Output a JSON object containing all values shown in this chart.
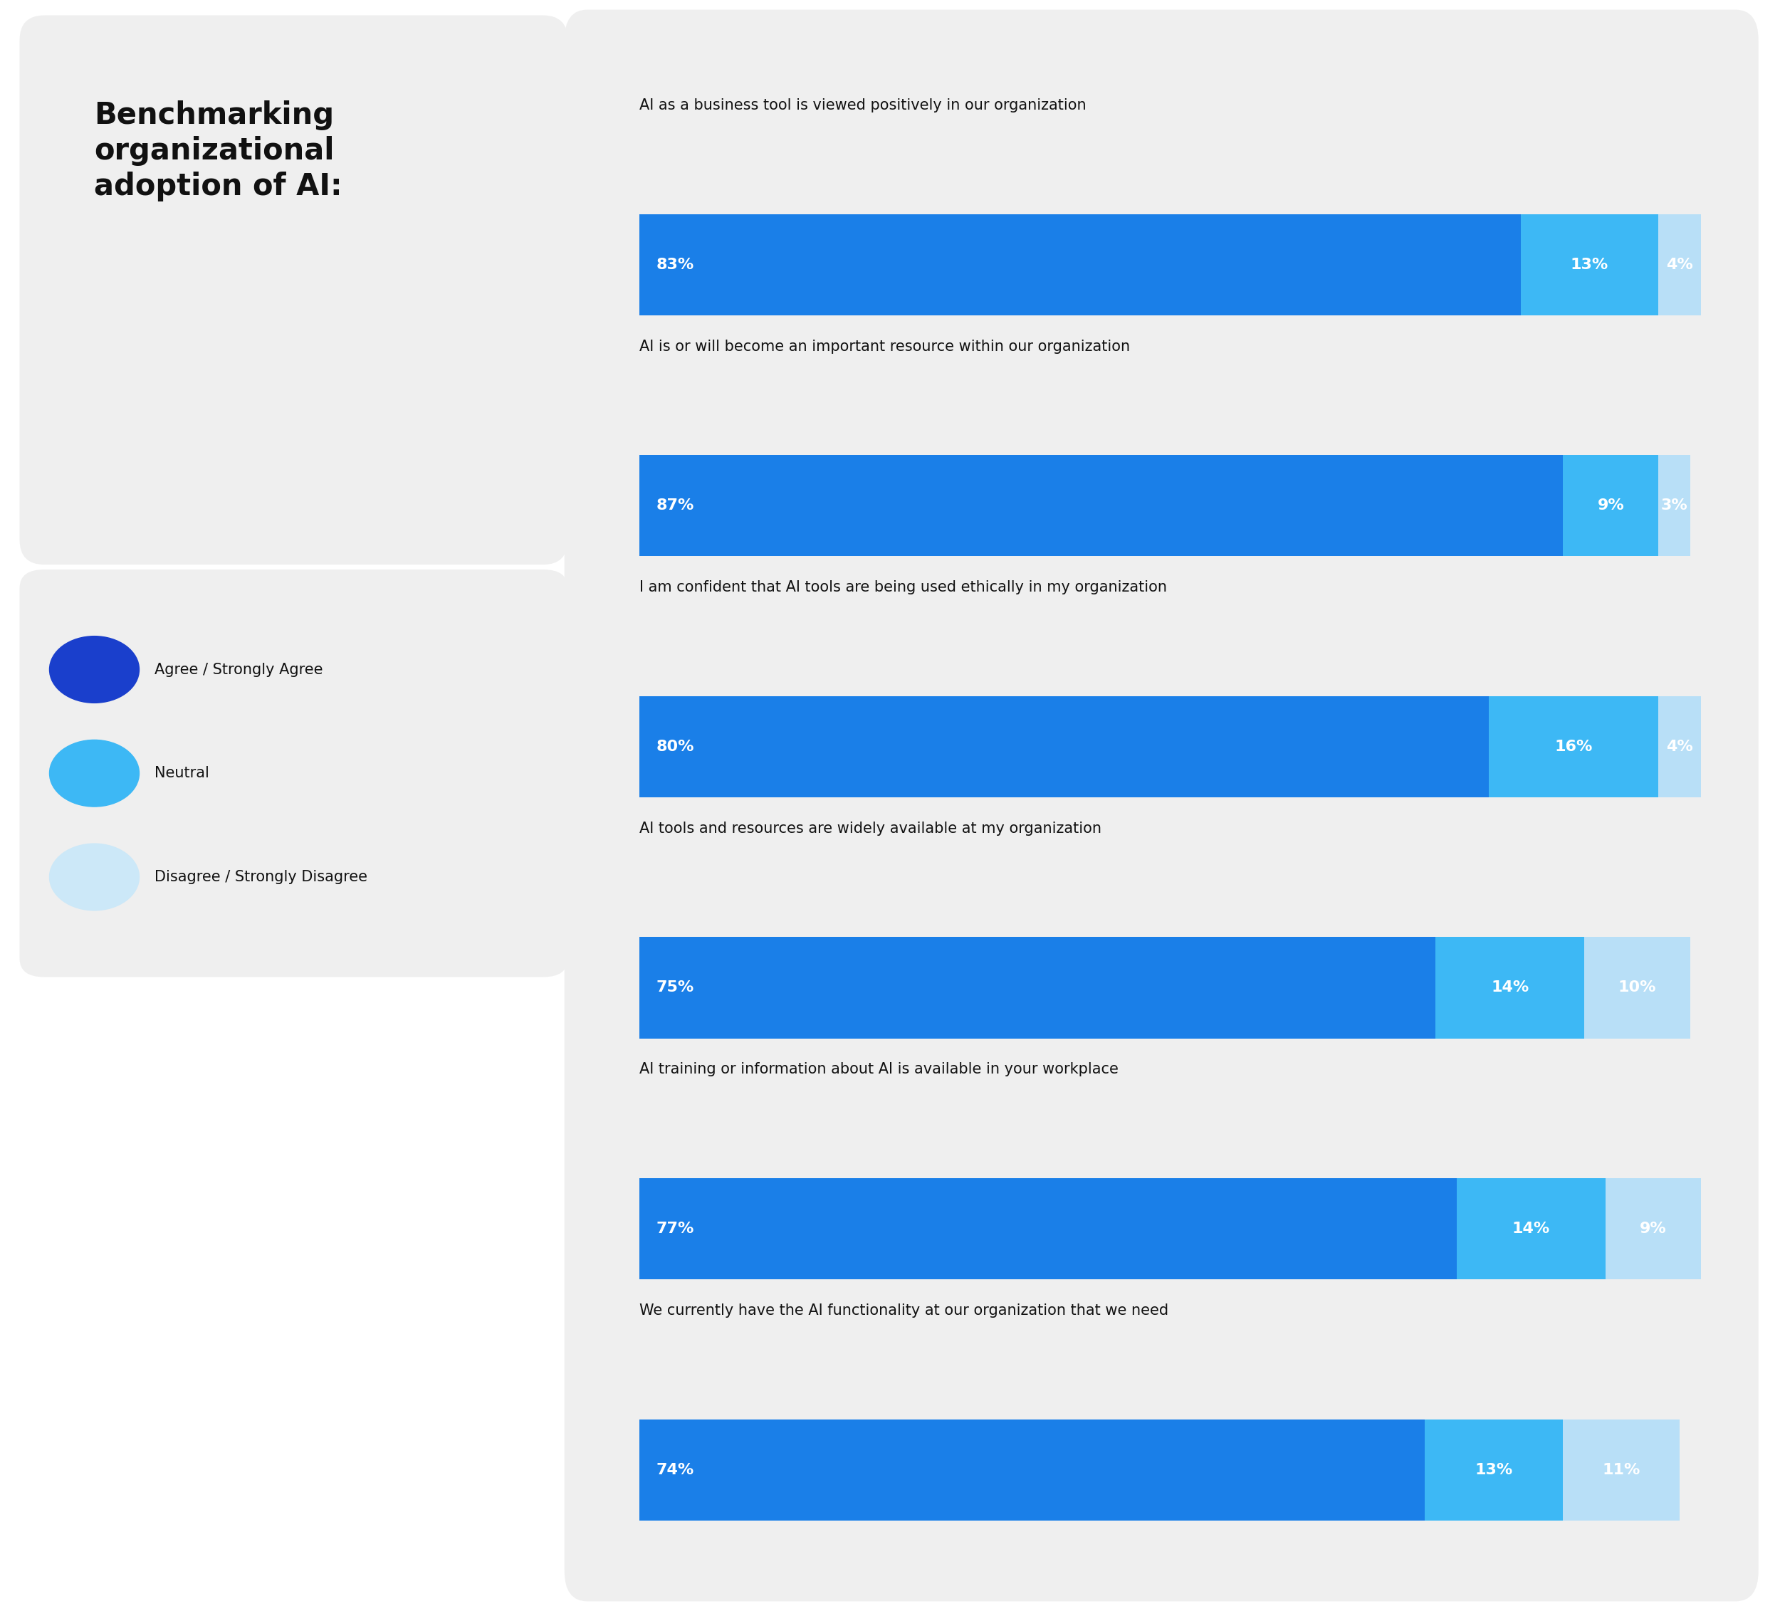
{
  "title": "Benchmarking\norganizational\nadoption of AI:",
  "background_color": "#f2f2f2",
  "panel_color": "#efefef",
  "right_panel_color": "#efefef",
  "questions": [
    "AI as a business tool is viewed positively in our organization",
    "AI is or will become an important resource within our organization",
    "I am confident that AI tools are being used ethically in my organization",
    "AI tools and resources are widely available at my organization",
    "AI training or information about AI is available in your workplace",
    "We currently have the AI functionality at our organization that we need"
  ],
  "agree_pct": [
    83,
    87,
    80,
    75,
    77,
    74
  ],
  "neutral_pct": [
    13,
    9,
    16,
    14,
    14,
    13
  ],
  "disagree_pct": [
    4,
    3,
    4,
    10,
    9,
    11
  ],
  "color_agree": "#1a7fe8",
  "color_neutral": "#3db8f5",
  "color_disagree": "#b8dff7",
  "legend_labels": [
    "Agree / Strongly Agree",
    "Neutral",
    "Disagree / Strongly Disagree"
  ],
  "legend_colors": [
    "#1a3fcc",
    "#3db8f5",
    "#cce8f8"
  ],
  "bar_label_fontsize": 16,
  "question_fontsize": 15,
  "title_fontsize": 30,
  "legend_fontsize": 15
}
